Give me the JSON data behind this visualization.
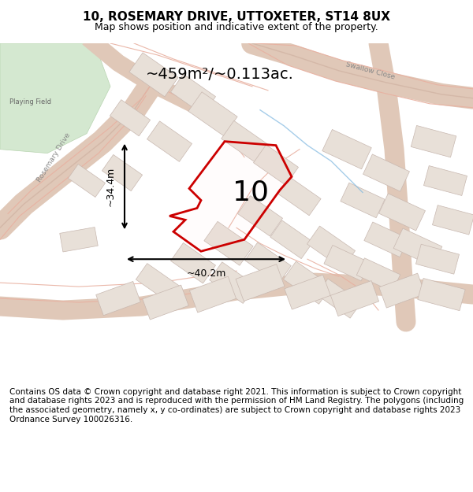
{
  "title": "10, ROSEMARY DRIVE, UTTOXETER, ST14 8UX",
  "subtitle": "Map shows position and indicative extent of the property.",
  "area_text": "~459m²/~0.113ac.",
  "dim_h": "~34.4m",
  "dim_w": "~40.2m",
  "label": "10",
  "footer": "Contains OS data © Crown copyright and database right 2021. This information is subject to Crown copyright and database rights 2023 and is reproduced with the permission of HM Land Registry. The polygons (including the associated geometry, namely x, y co-ordinates) are subject to Crown copyright and database rights 2023 Ordnance Survey 100026316.",
  "map_bg": "#f0ece8",
  "road_color": "#e8b0a0",
  "building_fill": "#e8e0d8",
  "building_edge": "#c8b8b0",
  "highlight_color": "#cc0000",
  "green_area": "#d4e8d0",
  "title_fontsize": 11,
  "subtitle_fontsize": 9,
  "footer_fontsize": 7.5
}
